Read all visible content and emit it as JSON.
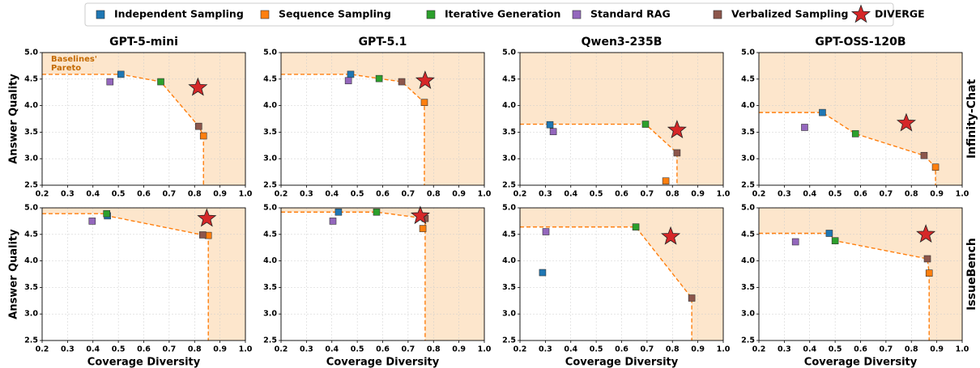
{
  "chart_data": {
    "type": "scatter",
    "xlabel": "Coverage Diversity",
    "ylabel": "Answer Quality",
    "columns": [
      "GPT-5-mini",
      "GPT-5.1",
      "Qwen3-235B",
      "GPT-OSS-120B"
    ],
    "rows": [
      "Infinity-Chat",
      "IssueBench"
    ],
    "annotation": "Baselines' Pareto",
    "xlim": [
      0.2,
      1.0
    ],
    "xticks": [
      0.2,
      0.3,
      0.4,
      0.5,
      0.6,
      0.7,
      0.8,
      0.9,
      {
        "value": 1.0,
        "label": "1.0"
      }
    ],
    "ylim": [
      2.5,
      5.0
    ],
    "yticks": [
      2.5,
      {
        "value": 3.0,
        "label": "3.0"
      },
      3.5,
      {
        "value": 4.0,
        "label": "4.0"
      },
      4.5,
      {
        "value": 5.0,
        "label": "5.0"
      }
    ],
    "grid": true,
    "legend": "top",
    "series": [
      {
        "name": "Independent Sampling",
        "color": "#1f77b4",
        "marker": "square",
        "x": [
          0.51,
          0.474,
          0.318,
          0.45,
          0.457,
          0.426,
          0.289,
          0.477
        ],
        "y": [
          4.59,
          4.59,
          3.64,
          3.87,
          4.85,
          4.92,
          3.78,
          4.52
        ]
      },
      {
        "name": "Sequence Sampling",
        "color": "#ff7f0e",
        "marker": "square",
        "x": [
          0.835,
          0.764,
          0.774,
          0.895,
          0.854,
          0.758,
          null,
          0.87
        ],
        "y": [
          3.43,
          4.06,
          2.58,
          2.84,
          4.48,
          4.61,
          null,
          3.77
        ]
      },
      {
        "name": "Iterative Generation",
        "color": "#2ca02c",
        "marker": "square",
        "x": [
          0.667,
          0.586,
          0.694,
          0.58,
          0.454,
          0.576,
          0.656,
          0.5
        ],
        "y": [
          4.45,
          4.51,
          3.65,
          3.47,
          4.89,
          4.92,
          4.64,
          4.38
        ]
      },
      {
        "name": "Standard RAG",
        "color": "#9467bd",
        "marker": "square",
        "x": [
          0.467,
          0.465,
          0.331,
          0.38,
          0.397,
          0.404,
          0.302,
          0.344
        ],
        "y": [
          4.45,
          4.47,
          3.51,
          3.59,
          4.75,
          4.75,
          4.55,
          4.36
        ]
      },
      {
        "name": "Verbalized Sampling",
        "color": "#8c564b",
        "marker": "square",
        "x": [
          0.816,
          0.675,
          0.818,
          0.85,
          0.832,
          0.767,
          0.876,
          0.863
        ],
        "y": [
          3.61,
          4.45,
          3.11,
          3.06,
          4.49,
          4.8,
          3.3,
          4.04
        ]
      },
      {
        "name": "DIVERGE",
        "color": "#d62728",
        "marker": "star",
        "x": [
          0.813,
          0.767,
          0.818,
          0.78,
          0.848,
          0.748,
          0.793,
          0.857
        ],
        "y": [
          4.34,
          4.47,
          3.54,
          3.67,
          4.8,
          4.85,
          4.46,
          4.5
        ]
      }
    ]
  }
}
